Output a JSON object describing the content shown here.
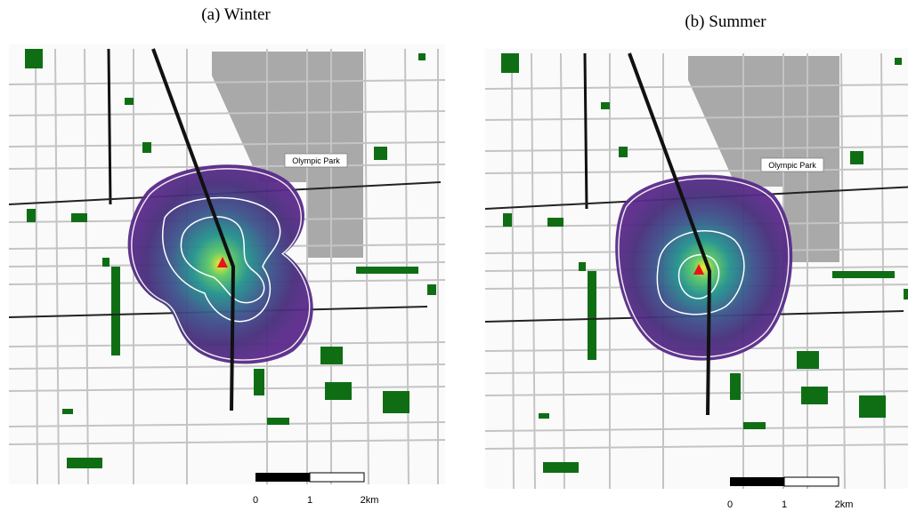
{
  "panels": [
    {
      "title": "(a)  Winter",
      "place_label": "Olympic Park",
      "scale_labels": [
        "0",
        "1",
        "2km"
      ]
    },
    {
      "title": "(b)  Summer",
      "place_label": "Olympic Park",
      "scale_labels": [
        "0",
        "1",
        "2km"
      ]
    }
  ]
}
